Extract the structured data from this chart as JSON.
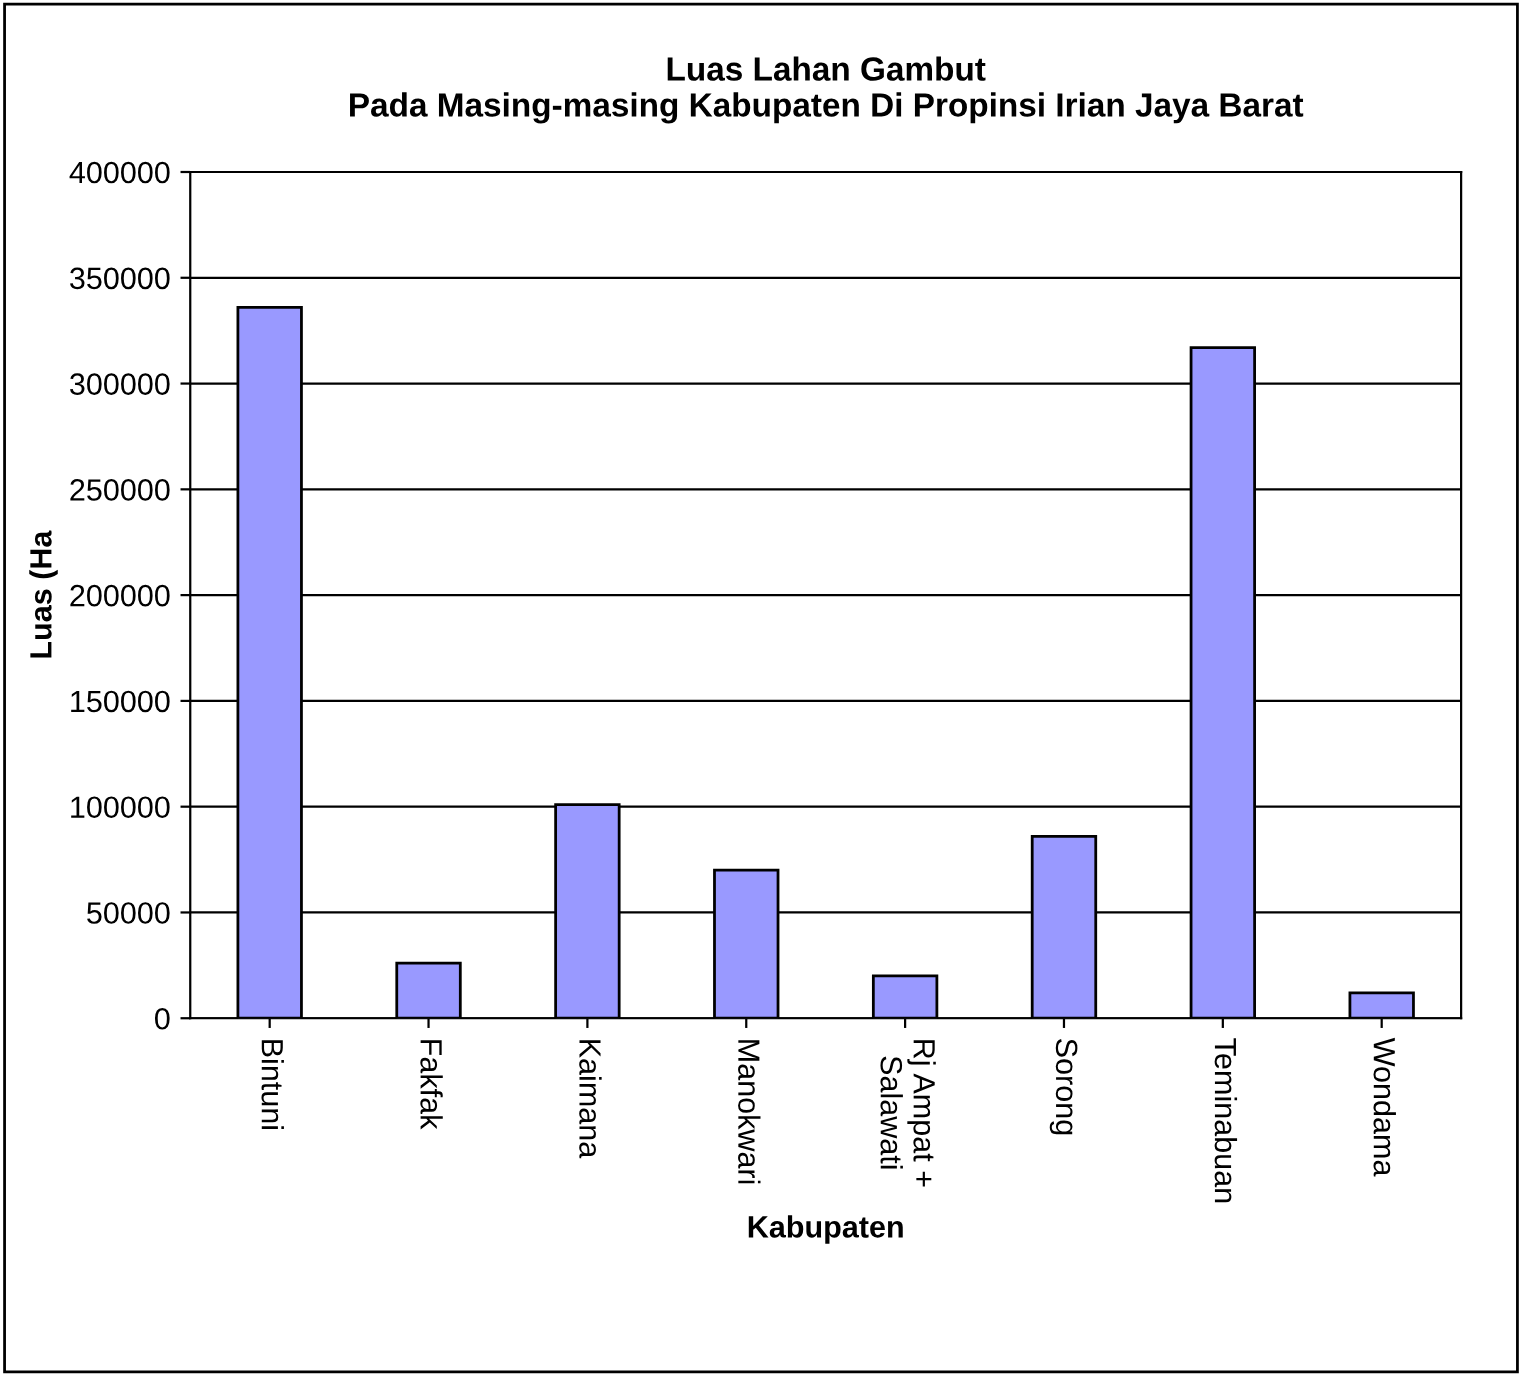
{
  "chart_data": {
    "type": "bar",
    "title": "Luas Lahan Gambut\nPada Masing-masing Kabupaten Di Propinsi Irian Jaya Barat",
    "xlabel": "Kabupaten",
    "ylabel": "Luas (Ha",
    "categories": [
      "Bintuni",
      "Fakfak",
      "Kaimana",
      "Manokwari",
      "Rj Ampat +\nSalawati",
      "Sorong",
      "Teminabuan",
      "Wondama"
    ],
    "values": [
      336000,
      26000,
      101000,
      70000,
      20000,
      86000,
      317000,
      12000
    ],
    "color": "#9999ff",
    "ylim": [
      0,
      400000
    ],
    "yticks": [
      0,
      50000,
      100000,
      150000,
      200000,
      250000,
      300000,
      350000,
      400000
    ],
    "grid": "y",
    "legend": false
  }
}
